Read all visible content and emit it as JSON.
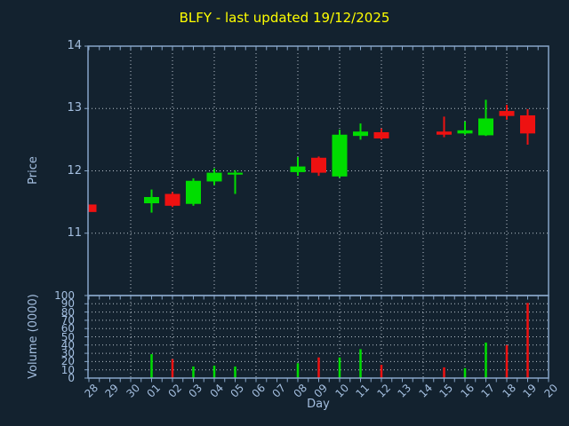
{
  "title": {
    "text": "BLFY - last updated 19/12/2025"
  },
  "xlabel": "Day",
  "colors": {
    "background": "#13222f",
    "up": "#00dd00",
    "down": "#ee1111",
    "axis": "#87a5c8",
    "tick_label": "#a4bfe0",
    "grid": "#b8c2cc",
    "title": "#ffff00"
  },
  "chart_data": {
    "type": "candlestick-with-volume",
    "title": "BLFY - last updated 19/12/2025",
    "xlabel": "Day",
    "x_categories": [
      "28",
      "29",
      "30",
      "01",
      "02",
      "03",
      "04",
      "05",
      "06",
      "07",
      "08",
      "09",
      "10",
      "11",
      "12",
      "13",
      "14",
      "15",
      "16",
      "17",
      "18",
      "19",
      "20"
    ],
    "grid": true,
    "price_panel": {
      "ylabel": "Price",
      "ylim": [
        10.0,
        14.0
      ],
      "yticks": [
        11,
        12,
        13,
        14
      ]
    },
    "volume_panel": {
      "ylabel": "Volume (0000)",
      "ylim": [
        0,
        100
      ],
      "yticks": [
        0,
        10,
        20,
        30,
        40,
        50,
        60,
        70,
        80,
        90,
        100
      ]
    },
    "series": [
      {
        "day": "28",
        "open": 11.46,
        "high": 11.46,
        "low": 11.34,
        "close": 11.34,
        "volume": 0
      },
      {
        "day": "01",
        "open": 11.48,
        "high": 11.7,
        "low": 11.33,
        "close": 11.58,
        "volume": 29
      },
      {
        "day": "02",
        "open": 11.63,
        "high": 11.66,
        "low": 11.42,
        "close": 11.44,
        "volume": 23
      },
      {
        "day": "03",
        "open": 11.47,
        "high": 11.88,
        "low": 11.44,
        "close": 11.84,
        "volume": 14
      },
      {
        "day": "04",
        "open": 11.83,
        "high": 12.04,
        "low": 11.77,
        "close": 11.97,
        "volume": 15
      },
      {
        "day": "05",
        "open": 11.94,
        "high": 12.01,
        "low": 11.63,
        "close": 11.97,
        "volume": 14
      },
      {
        "day": "08",
        "open": 11.98,
        "high": 12.22,
        "low": 11.92,
        "close": 12.07,
        "volume": 18
      },
      {
        "day": "09",
        "open": 12.21,
        "high": 12.23,
        "low": 11.92,
        "close": 11.97,
        "volume": 25
      },
      {
        "day": "10",
        "open": 11.91,
        "high": 12.66,
        "low": 11.89,
        "close": 12.58,
        "volume": 25
      },
      {
        "day": "11",
        "open": 12.56,
        "high": 12.76,
        "low": 12.5,
        "close": 12.63,
        "volume": 35
      },
      {
        "day": "12",
        "open": 12.62,
        "high": 12.68,
        "low": 12.5,
        "close": 12.52,
        "volume": 16
      },
      {
        "day": "15",
        "open": 12.63,
        "high": 12.87,
        "low": 12.54,
        "close": 12.58,
        "volume": 13
      },
      {
        "day": "16",
        "open": 12.6,
        "high": 12.79,
        "low": 12.58,
        "close": 12.65,
        "volume": 12
      },
      {
        "day": "17",
        "open": 12.57,
        "high": 13.14,
        "low": 12.56,
        "close": 12.84,
        "volume": 43
      },
      {
        "day": "18",
        "open": 12.96,
        "high": 13.06,
        "low": 12.82,
        "close": 12.88,
        "volume": 40
      },
      {
        "day": "19",
        "open": 12.89,
        "high": 12.99,
        "low": 12.42,
        "close": 12.6,
        "volume": 91
      }
    ]
  }
}
